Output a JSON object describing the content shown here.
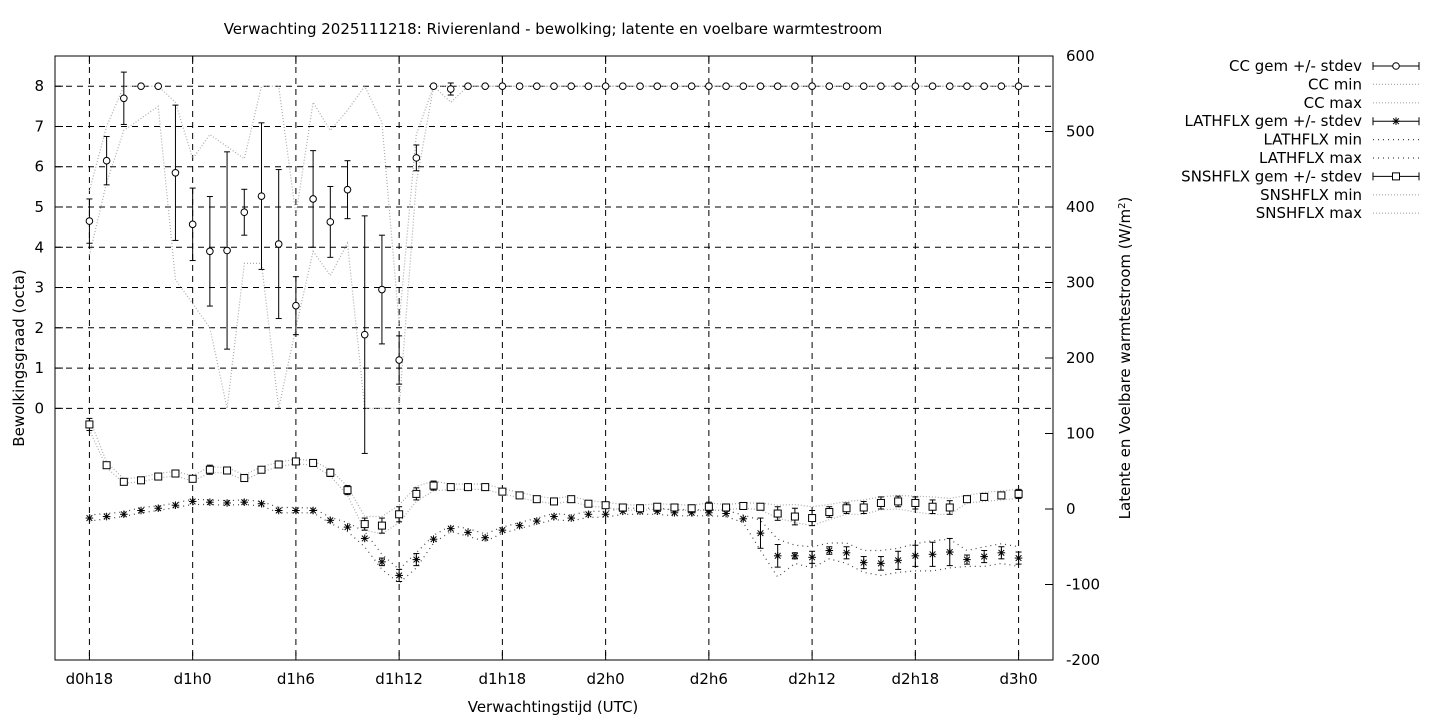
{
  "chart_data": {
    "type": "line",
    "title": "Verwachting 2025111218: Rivierenland - bewolking; latente en voelbare warmtestroom",
    "xlabel": "Verwachtingstijd (UTC)",
    "ylabel": "Bewolkingsgraad (octa)",
    "y2label": "Latente en Voelbare warmtestroom (W/m²)",
    "x_unit": "hours since d0h18",
    "xlim": [
      -2,
      56
    ],
    "ylim": [
      -6.25,
      8.75
    ],
    "y2lim": [
      -200,
      600
    ],
    "x_ticks": [
      {
        "x": 0,
        "label": "d0h18"
      },
      {
        "x": 6,
        "label": "d1h0"
      },
      {
        "x": 12,
        "label": "d1h6"
      },
      {
        "x": 18,
        "label": "d1h12"
      },
      {
        "x": 24,
        "label": "d1h18"
      },
      {
        "x": 30,
        "label": "d2h0"
      },
      {
        "x": 36,
        "label": "d2h6"
      },
      {
        "x": 42,
        "label": "d2h12"
      },
      {
        "x": 48,
        "label": "d2h18"
      },
      {
        "x": 54,
        "label": "d3h0"
      }
    ],
    "y_ticks": [
      0,
      1,
      2,
      3,
      4,
      5,
      6,
      7,
      8
    ],
    "y2_ticks": [
      -200,
      -100,
      0,
      100,
      200,
      300,
      400,
      500,
      600
    ],
    "grid": true,
    "legend_position": "right",
    "x": [
      0,
      1,
      2,
      3,
      4,
      5,
      6,
      7,
      8,
      9,
      10,
      11,
      12,
      13,
      14,
      15,
      16,
      17,
      18,
      19,
      20,
      21,
      22,
      23,
      24,
      25,
      26,
      27,
      28,
      29,
      30,
      31,
      32,
      33,
      34,
      35,
      36,
      37,
      38,
      39,
      40,
      41,
      42,
      43,
      44,
      45,
      46,
      47,
      48,
      49,
      50,
      51,
      52,
      53,
      54
    ],
    "series": [
      {
        "name": "CC gem +/- stdev",
        "axis": "y1",
        "marker": "circle",
        "values": [
          4.65,
          6.15,
          7.7,
          8,
          8,
          5.85,
          4.57,
          3.9,
          3.92,
          4.87,
          5.27,
          4.08,
          2.55,
          5.2,
          4.63,
          5.43,
          1.83,
          2.95,
          1.2,
          6.22,
          8,
          7.93,
          8,
          8,
          8,
          8,
          8,
          8,
          8,
          8,
          8,
          8,
          8,
          8,
          8,
          8,
          8,
          8,
          8,
          8,
          8,
          8,
          8,
          8,
          8,
          8,
          8,
          8,
          8,
          8,
          8,
          8,
          8,
          8,
          8
        ],
        "stdev": [
          0.55,
          0.6,
          0.65,
          0,
          0,
          1.68,
          0.9,
          1.36,
          2.45,
          0.57,
          1.82,
          1.85,
          0.72,
          1.2,
          0.88,
          0.72,
          2.95,
          1.35,
          0.6,
          0.32,
          0,
          0.15,
          0,
          0,
          0,
          0,
          0,
          0,
          0,
          0,
          0,
          0,
          0,
          0,
          0,
          0,
          0,
          0,
          0,
          0,
          0,
          0,
          0,
          0,
          0,
          0,
          0,
          0,
          0,
          0,
          0,
          0,
          0,
          0,
          0
        ]
      },
      {
        "name": "CC min",
        "axis": "y1",
        "style": "dotted",
        "values": [
          3.8,
          5.6,
          6.9,
          7.2,
          7.5,
          3.2,
          2.6,
          2.0,
          0.0,
          3.6,
          3.6,
          0.0,
          2.0,
          3.9,
          3.3,
          4.1,
          0.0,
          0.0,
          0.0,
          5.6,
          8,
          7.6,
          8,
          8,
          8,
          8,
          8,
          8,
          8,
          8,
          8,
          8,
          8,
          8,
          8,
          8,
          8,
          8,
          8,
          8,
          8,
          8,
          8,
          8,
          8,
          8,
          8,
          8,
          8,
          8,
          8,
          8,
          8,
          8,
          8
        ]
      },
      {
        "name": "CC max",
        "axis": "y1",
        "style": "dotted",
        "values": [
          5.4,
          7.0,
          8,
          8,
          8,
          7.6,
          6.2,
          6.8,
          6.5,
          6.2,
          8,
          8,
          4.8,
          7.6,
          6.9,
          7.4,
          8,
          7.1,
          2.1,
          6.8,
          8,
          8,
          8,
          8,
          8,
          8,
          8,
          8,
          8,
          8,
          8,
          8,
          8,
          8,
          8,
          8,
          8,
          8,
          8,
          8,
          8,
          8,
          8,
          8,
          8,
          8,
          8,
          8,
          8,
          8,
          8,
          8,
          8,
          8,
          8
        ]
      },
      {
        "name": "LATHFLX gem +/- stdev",
        "axis": "y2",
        "marker": "star",
        "values": [
          -12,
          -10,
          -7,
          -2,
          1,
          5,
          10,
          9,
          8,
          9,
          7,
          -2,
          -2,
          -2,
          -15,
          -24,
          -39,
          -70,
          -88,
          -67,
          -40,
          -26,
          -31,
          -38,
          -28,
          -22,
          -16,
          -10,
          -12,
          -7,
          -7,
          -3,
          -3,
          -3,
          -5,
          -5,
          -5,
          -6,
          -13,
          -32,
          -62,
          -62,
          -64,
          -55,
          -58,
          -71,
          -72,
          -68,
          -62,
          -60,
          -57,
          -67,
          -63,
          -58,
          -65
        ],
        "stdev": [
          0,
          0,
          0,
          0,
          0,
          0,
          0,
          0,
          0,
          0,
          0,
          0,
          0,
          0,
          0,
          0,
          0,
          5,
          8,
          8,
          0,
          0,
          0,
          0,
          0,
          0,
          0,
          0,
          0,
          0,
          0,
          0,
          0,
          0,
          0,
          0,
          0,
          0,
          0,
          20,
          15,
          4,
          8,
          5,
          8,
          8,
          9,
          12,
          14,
          16,
          18,
          6,
          8,
          8,
          8
        ]
      },
      {
        "name": "LATHFLX min",
        "axis": "y2",
        "style": "dotted",
        "values": [
          -16,
          -13,
          -10,
          -5,
          -2,
          2,
          6,
          6,
          5,
          6,
          4,
          -5,
          -5,
          -5,
          -19,
          -30,
          -50,
          -80,
          -98,
          -78,
          -45,
          -30,
          -36,
          -43,
          -32,
          -26,
          -20,
          -14,
          -16,
          -11,
          -11,
          -7,
          -7,
          -7,
          -9,
          -9,
          -9,
          -10,
          -18,
          -55,
          -90,
          -72,
          -78,
          -66,
          -72,
          -84,
          -88,
          -84,
          -82,
          -82,
          -78,
          -76,
          -76,
          -72,
          -76
        ]
      },
      {
        "name": "LATHFLX max",
        "axis": "y2",
        "style": "dotted",
        "values": [
          -8,
          -6,
          -4,
          2,
          4,
          8,
          13,
          12,
          11,
          12,
          10,
          2,
          2,
          1,
          -11,
          -18,
          -30,
          -60,
          -80,
          -58,
          -35,
          -22,
          -26,
          -33,
          -24,
          -18,
          -12,
          -6,
          -8,
          -3,
          -3,
          1,
          1,
          1,
          -1,
          -1,
          -1,
          -2,
          -8,
          -15,
          -40,
          -48,
          -50,
          -45,
          -45,
          -55,
          -55,
          -52,
          -46,
          -42,
          -40,
          -55,
          -50,
          -46,
          -50
        ]
      },
      {
        "name": "SNSHFLX gem +/- stdev",
        "axis": "y2",
        "marker": "square",
        "values": [
          112,
          58,
          36,
          38,
          43,
          47,
          40,
          52,
          51,
          41,
          52,
          59,
          63,
          61,
          48,
          25,
          -20,
          -22,
          -7,
          20,
          31,
          29,
          29,
          29,
          23,
          18,
          13,
          10,
          13,
          7,
          5,
          2,
          1,
          3,
          2,
          1,
          3,
          2,
          4,
          3,
          -6,
          -10,
          -12,
          -4,
          1,
          2,
          8,
          10,
          8,
          3,
          2,
          13,
          16,
          18,
          20
        ],
        "stdev": [
          8,
          0,
          0,
          0,
          0,
          0,
          0,
          6,
          0,
          0,
          0,
          0,
          0,
          0,
          5,
          6,
          8,
          10,
          10,
          8,
          6,
          0,
          0,
          0,
          0,
          0,
          0,
          0,
          0,
          0,
          0,
          0,
          0,
          0,
          0,
          0,
          6,
          0,
          0,
          0,
          9,
          11,
          10,
          7,
          7,
          8,
          8,
          7,
          8,
          9,
          9,
          0,
          0,
          4,
          6
        ]
      },
      {
        "name": "SNSHFLX min",
        "axis": "y2",
        "style": "dotted",
        "values": [
          105,
          55,
          34,
          36,
          41,
          44,
          37,
          48,
          48,
          38,
          49,
          56,
          60,
          58,
          44,
          18,
          -28,
          -33,
          -18,
          10,
          24,
          26,
          26,
          26,
          20,
          15,
          10,
          7,
          10,
          4,
          2,
          -1,
          -2,
          0,
          -1,
          -2,
          -2,
          -1,
          1,
          -1,
          -12,
          -18,
          -22,
          -14,
          -7,
          -7,
          -1,
          0,
          -4,
          -7,
          -7,
          8,
          10,
          12,
          14
        ]
      },
      {
        "name": "SNSHFLX max",
        "axis": "y2",
        "style": "dotted",
        "values": [
          120,
          62,
          40,
          42,
          47,
          50,
          44,
          56,
          55,
          45,
          56,
          62,
          66,
          64,
          52,
          30,
          -10,
          -10,
          5,
          30,
          37,
          33,
          33,
          33,
          27,
          22,
          17,
          14,
          17,
          11,
          9,
          6,
          5,
          7,
          6,
          5,
          8,
          6,
          8,
          8,
          5,
          6,
          3,
          6,
          10,
          12,
          16,
          18,
          17,
          16,
          14,
          18,
          22,
          24,
          26
        ]
      }
    ]
  }
}
